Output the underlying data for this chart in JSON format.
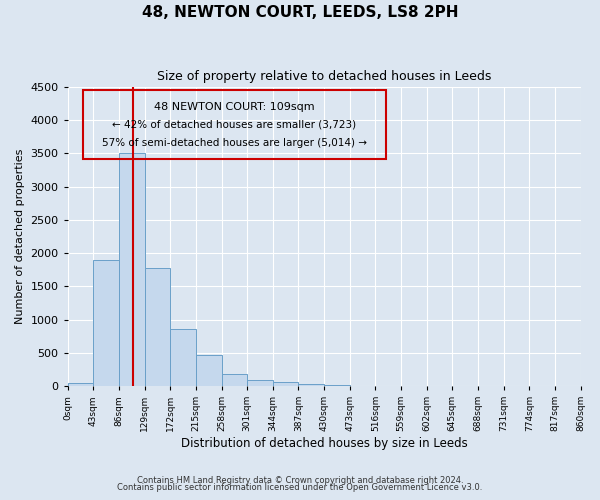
{
  "title": "48, NEWTON COURT, LEEDS, LS8 2PH",
  "subtitle": "Size of property relative to detached houses in Leeds",
  "xlabel": "Distribution of detached houses by size in Leeds",
  "ylabel": "Number of detached properties",
  "bar_color": "#c5d8ed",
  "bar_edge_color": "#6aa0c9",
  "background_color": "#dce6f1",
  "grid_color": "#ffffff",
  "annotation_box_color": "#cc0000",
  "vline_color": "#cc0000",
  "vline_x": 109,
  "ylim": [
    0,
    4500
  ],
  "yticks": [
    0,
    500,
    1000,
    1500,
    2000,
    2500,
    3000,
    3500,
    4000,
    4500
  ],
  "bin_edges": [
    0,
    43,
    86,
    129,
    172,
    215,
    258,
    301,
    344,
    387,
    430,
    473,
    516,
    559,
    602,
    645,
    688,
    731,
    774,
    817,
    860
  ],
  "bin_labels": [
    "0sqm",
    "43sqm",
    "86sqm",
    "129sqm",
    "172sqm",
    "215sqm",
    "258sqm",
    "301sqm",
    "344sqm",
    "387sqm",
    "430sqm",
    "473sqm",
    "516sqm",
    "559sqm",
    "602sqm",
    "645sqm",
    "688sqm",
    "731sqm",
    "774sqm",
    "817sqm",
    "860sqm"
  ],
  "bar_heights": [
    50,
    1900,
    3500,
    1780,
    860,
    460,
    185,
    90,
    55,
    30,
    20,
    0,
    0,
    0,
    0,
    0,
    0,
    0,
    0,
    0
  ],
  "annotation_title": "48 NEWTON COURT: 109sqm",
  "annotation_line1": "← 42% of detached houses are smaller (3,723)",
  "annotation_line2": "57% of semi-detached houses are larger (5,014) →",
  "footer_line1": "Contains HM Land Registry data © Crown copyright and database right 2024.",
  "footer_line2": "Contains public sector information licensed under the Open Government Licence v3.0."
}
